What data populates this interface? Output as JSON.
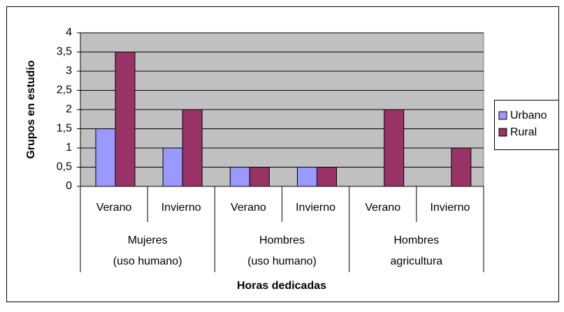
{
  "chart_data": {
    "type": "bar",
    "y_label": "Grupos en estudio",
    "x_label": "Horas dedicadas",
    "categories": [
      "Verano",
      "Invierno",
      "Verano",
      "Invierno",
      "Verano",
      "Invierno"
    ],
    "groups": [
      [
        "Mujeres",
        "(uso humano)"
      ],
      [
        "Hombres",
        "(uso humano)"
      ],
      [
        "Hombres",
        "agricultura"
      ]
    ],
    "series": [
      {
        "name": "Urbano",
        "color": "#9999ff",
        "values": [
          1.5,
          1,
          0.5,
          0.5,
          0,
          0
        ]
      },
      {
        "name": "Rural",
        "color": "#993366",
        "values": [
          3.5,
          2,
          0.5,
          0.5,
          2,
          1
        ]
      }
    ],
    "ylim": [
      0,
      4
    ],
    "yticks": [
      0,
      {
        "value": 0.5,
        "label": "0,5"
      },
      1,
      {
        "value": 1.5,
        "label": "1,5"
      },
      2,
      {
        "value": 2.5,
        "label": "2,5"
      },
      3,
      {
        "value": 3.5,
        "label": "3,5"
      },
      4
    ],
    "grid": true,
    "legend": "right"
  }
}
